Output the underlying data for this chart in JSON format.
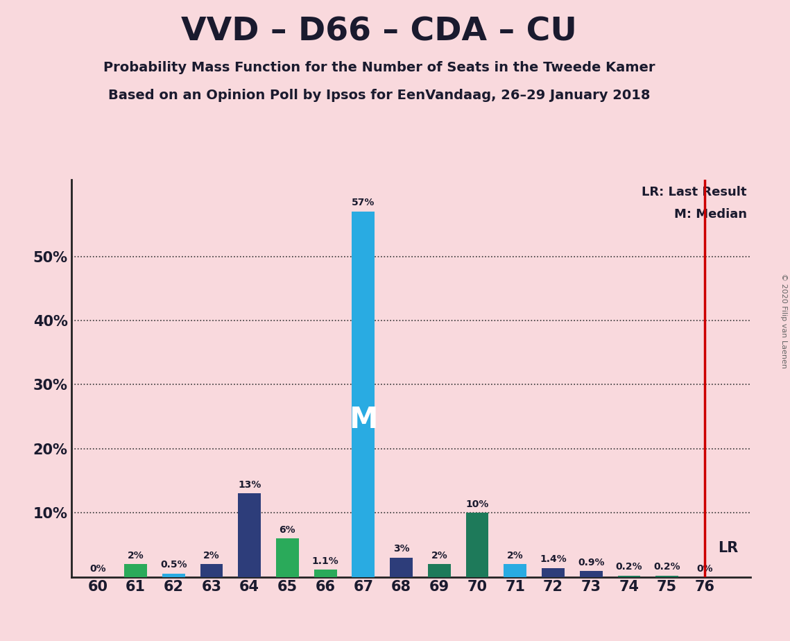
{
  "title": "VVD – D66 – CDA – CU",
  "subtitle1": "Probability Mass Function for the Number of Seats in the Tweede Kamer",
  "subtitle2": "Based on an Opinion Poll by Ipsos for EenVandaag, 26–29 January 2018",
  "copyright": "© 2020 Filip van Laenen",
  "seats": [
    60,
    61,
    62,
    63,
    64,
    65,
    66,
    67,
    68,
    69,
    70,
    71,
    72,
    73,
    74,
    75,
    76
  ],
  "probabilities": [
    0.0,
    2.0,
    0.5,
    2.0,
    13.0,
    6.0,
    1.1,
    57.0,
    3.0,
    2.0,
    10.0,
    2.0,
    1.4,
    0.9,
    0.2,
    0.2,
    0.0
  ],
  "labels": [
    "0%",
    "2%",
    "0.5%",
    "2%",
    "13%",
    "6%",
    "1.1%",
    "57%",
    "3%",
    "2%",
    "10%",
    "2%",
    "1.4%",
    "0.9%",
    "0.2%",
    "0.2%",
    "0%"
  ],
  "bar_colors": [
    "#2d3d7a",
    "#2aaa5a",
    "#29abe2",
    "#2d3d7a",
    "#2d3d7a",
    "#2aaa5a",
    "#2aaa5a",
    "#29abe2",
    "#2d3d7a",
    "#1e7a5a",
    "#1e7a5a",
    "#29abe2",
    "#2d3d7a",
    "#2d3d7a",
    "#1e7a5a",
    "#1e7a5a",
    "#2d3d7a"
  ],
  "median_seat": 67,
  "last_result_seat": 76,
  "background_color": "#f9d9dd",
  "bar_width": 0.6,
  "lr_color": "#cc0000",
  "yticks": [
    10,
    20,
    30,
    40,
    50
  ],
  "ytick_labels": [
    "10%",
    "20%",
    "30%",
    "40%",
    "50%"
  ],
  "grid_y": [
    10,
    20,
    30,
    40,
    50
  ],
  "ylim_max": 62,
  "xlim_min": 59.3,
  "xlim_max": 77.2
}
